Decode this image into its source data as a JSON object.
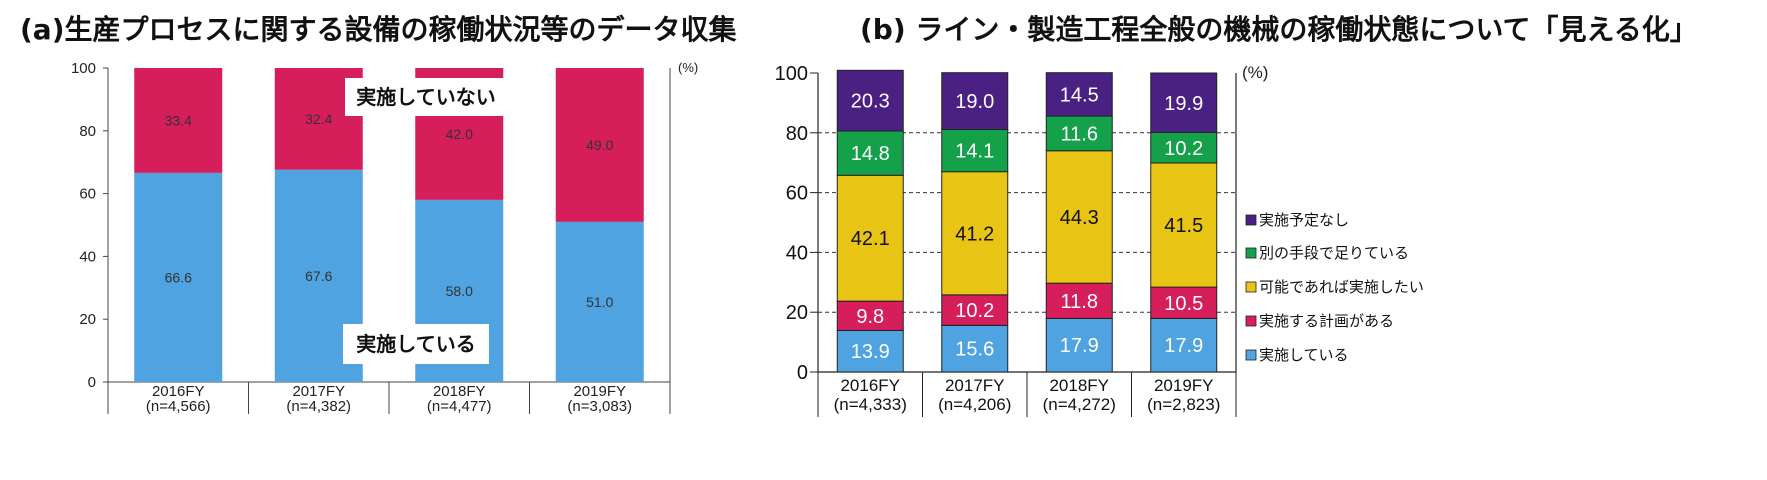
{
  "titles": {
    "a": "(a)生産プロセスに関する設備の稼働状況等のデータ収集",
    "b": "(b) ライン・製造工程全般の機械の稼働状態について「見える化」"
  },
  "chart_data": [
    {
      "type": "bar",
      "stacked": true,
      "title": "(a)生産プロセスに関する設備の稼働状況等のデータ収集",
      "categories": [
        "2016FY",
        "2017FY",
        "2018FY",
        "2019FY"
      ],
      "sample_sizes": [
        "(n=4,566)",
        "(n=4,382)",
        "(n=4,477)",
        "(n=3,083)"
      ],
      "unit": "(%)",
      "ylim": [
        0,
        100
      ],
      "yticks": [
        0,
        20,
        40,
        60,
        80,
        100
      ],
      "grid": false,
      "series": [
        {
          "name": "実施している",
          "values": [
            66.6,
            67.6,
            58.0,
            51.0
          ],
          "labels": [
            "66.6",
            "67.6",
            "58.0",
            "51.0"
          ],
          "color": "#4ea3e0"
        },
        {
          "name": "実施していない",
          "values": [
            33.4,
            32.4,
            42.0,
            49.0
          ],
          "labels": [
            "33.4",
            "32.4",
            "42.0",
            "49.0"
          ],
          "color": "#d61e5a"
        }
      ]
    },
    {
      "type": "bar",
      "stacked": true,
      "title": "(b) ライン・製造工程全般の機械の稼働状態について「見える化」",
      "categories": [
        "2016FY",
        "2017FY",
        "2018FY",
        "2019FY"
      ],
      "sample_sizes": [
        "(n=4,333)",
        "(n=4,206)",
        "(n=4,272)",
        "(n=2,823)"
      ],
      "unit": "(%)",
      "ylim": [
        0,
        100
      ],
      "yticks": [
        0,
        20,
        40,
        60,
        80,
        100
      ],
      "grid": true,
      "legend_position": "right",
      "series": [
        {
          "name": "実施している",
          "values": [
            13.9,
            15.6,
            17.9,
            17.9
          ],
          "labels": [
            "13.9",
            "15.6",
            "17.9",
            "17.9"
          ],
          "color": "#4ea3e0"
        },
        {
          "name": "実施する計画がある",
          "values": [
            9.8,
            10.2,
            11.8,
            10.5
          ],
          "labels": [
            "9.8",
            "10.2",
            "11.8",
            "10.5"
          ],
          "color": "#d61e5a"
        },
        {
          "name": "可能であれば実施したい",
          "values": [
            42.1,
            41.2,
            44.3,
            41.5
          ],
          "labels": [
            "42.1",
            "41.2",
            "44.3",
            "41.5"
          ],
          "color": "#e8c414"
        },
        {
          "name": "別の手段で足りている",
          "values": [
            14.8,
            14.1,
            11.6,
            10.2
          ],
          "labels": [
            "14.8",
            "14.1",
            "11.6",
            "10.2"
          ],
          "color": "#15a04a"
        },
        {
          "name": "実施予定なし",
          "values": [
            20.3,
            19.0,
            14.5,
            19.9
          ],
          "labels": [
            "20.3",
            "19.0",
            "14.5",
            "19.9"
          ],
          "color": "#4b2083"
        }
      ]
    }
  ]
}
